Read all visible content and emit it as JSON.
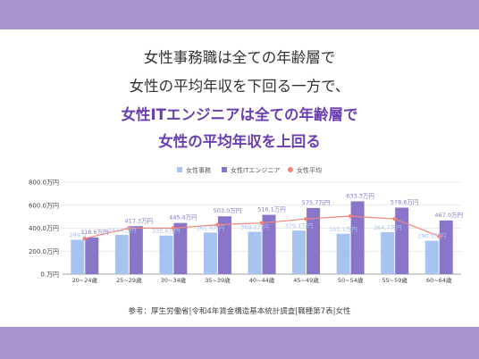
{
  "headline": {
    "line1": "女性事務職は全ての年齢層で",
    "line2": "女性の平均年収を下回る一方で、",
    "line3": "女性ITエンジニアは全ての年齢層で",
    "line4": "女性の平均年収を上回る"
  },
  "source": "参考：厚生労働省|令和4年賃金構造基本統計調査|職種第7表|女性",
  "colors": {
    "band": "#a893cd",
    "office": "#a7c3f0",
    "it": "#8a76c9",
    "avg": "#f0847a",
    "highlight_text": "#6a3fb0"
  },
  "chart_data": {
    "type": "bar",
    "categories": [
      "20~24歳",
      "25~29歳",
      "30~34歳",
      "35~39歳",
      "40~44歳",
      "45~49歳",
      "50~54歳",
      "55~59歳",
      "60~64歳"
    ],
    "series": [
      {
        "name": "女性事務",
        "type": "bar",
        "values": [
          299.0,
          342.4,
          335.6,
          361.9,
          368.2,
          379.1,
          351.1,
          364.7,
          290.5
        ],
        "labels": [
          "299.0",
          "342.4万円",
          "335.6万円",
          "361.9万円",
          "368.2万円",
          "379.1万円",
          "351.1万円",
          "364.7万円",
          "290.5万円"
        ]
      },
      {
        "name": "女性ITエンジニア",
        "type": "bar",
        "values": [
          318.6,
          417.3,
          445.4,
          503.0,
          516.1,
          575.7,
          633.3,
          578.6,
          467.0
        ],
        "labels": [
          "318.6万円",
          "417.3万円",
          "445.4万円",
          "503.0万円",
          "516.1万円",
          "575.7万円",
          "633.3万円",
          "578.6万円",
          "467.0万円"
        ]
      },
      {
        "name": "女性平均",
        "type": "line",
        "values": [
          310,
          400,
          400,
          430,
          445,
          480,
          505,
          480,
          330
        ]
      }
    ],
    "yticks": [
      "0.万円",
      "200.0万円",
      "400.0万円",
      "600.0万円",
      "800.0万円"
    ],
    "ylim": [
      0,
      800
    ],
    "grid": true,
    "legend": "top-center"
  }
}
